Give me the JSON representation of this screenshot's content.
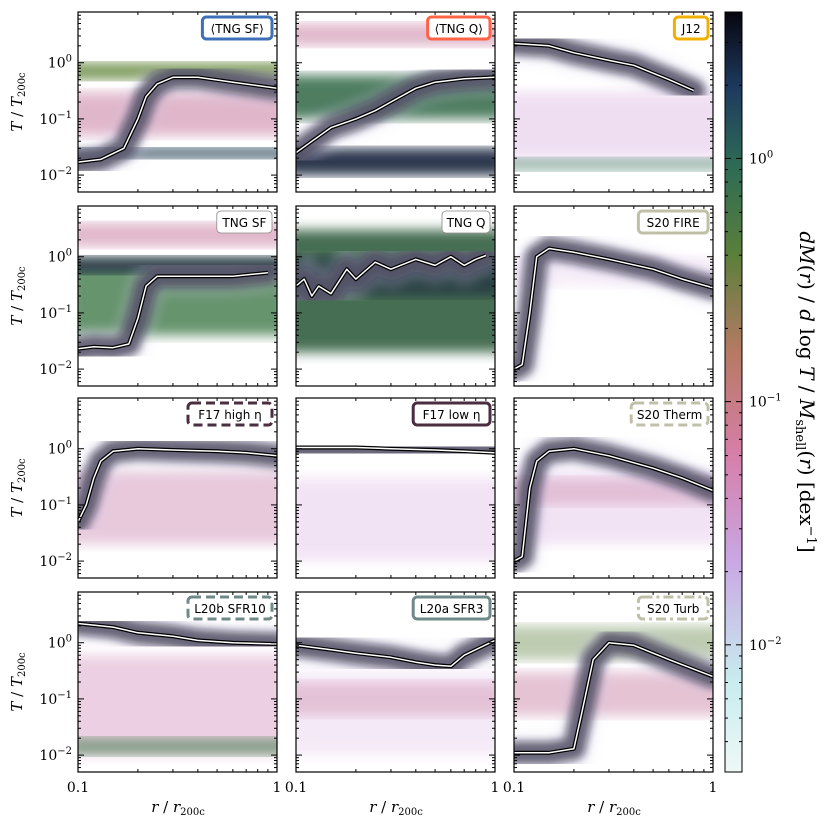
{
  "chart_data": {
    "type": "heatmap",
    "x_axis": {
      "scale": "log",
      "range": [
        0.1,
        1.0
      ],
      "tick_labels": [
        "0.1",
        "1"
      ],
      "label": "r / r_200c"
    },
    "y_axis": {
      "scale": "log",
      "range": [
        0.005,
        8.0
      ],
      "tick_labels": [
        "10^-2",
        "10^-1",
        "10^0"
      ],
      "label": "T / T_200c"
    },
    "colorbar": {
      "scale": "log",
      "range": [
        0.003,
        4.0
      ],
      "tick_labels": [
        "10^-2",
        "10^-1",
        "10^0"
      ],
      "label": "dM(r) / d log T / M_shell(r) [dex^-1]",
      "colormap": "cubehelix-like"
    },
    "panels": [
      {
        "id": "tngsf_stack",
        "label": "⟨TNG SF⟩",
        "label_color": "#3f6fb5",
        "label_style": "solid",
        "curve": {
          "r": [
            0.1,
            0.13,
            0.17,
            0.2,
            0.22,
            0.25,
            0.3,
            0.4,
            0.6,
            1.0
          ],
          "T": [
            0.017,
            0.019,
            0.03,
            0.1,
            0.25,
            0.42,
            0.55,
            0.55,
            0.45,
            0.35
          ]
        }
      },
      {
        "id": "tngq_stack",
        "label": "⟨TNG Q⟩",
        "label_color": "#ff6347",
        "label_style": "solid",
        "curve": {
          "r": [
            0.1,
            0.12,
            0.15,
            0.2,
            0.25,
            0.3,
            0.4,
            0.5,
            0.7,
            1.0
          ],
          "T": [
            0.025,
            0.04,
            0.07,
            0.1,
            0.14,
            0.2,
            0.35,
            0.45,
            0.52,
            0.55
          ]
        }
      },
      {
        "id": "j12",
        "label": "J12",
        "label_color": "#f0b000",
        "label_style": "solid",
        "curve": {
          "r": [
            0.1,
            0.15,
            0.2,
            0.3,
            0.4,
            0.5,
            0.6,
            0.8
          ],
          "T": [
            2.2,
            2.0,
            1.5,
            1.1,
            0.9,
            0.65,
            0.5,
            0.32
          ]
        }
      },
      {
        "id": "tng_sf",
        "label": "TNG SF",
        "label_color": "#ffffff",
        "label_style": "thin",
        "curve": {
          "r": [
            0.1,
            0.12,
            0.15,
            0.18,
            0.2,
            0.22,
            0.25,
            0.3,
            0.4,
            0.6,
            0.9
          ],
          "T": [
            0.023,
            0.025,
            0.024,
            0.028,
            0.08,
            0.3,
            0.45,
            0.45,
            0.45,
            0.45,
            0.52
          ]
        }
      },
      {
        "id": "tng_q",
        "label": "TNG Q",
        "label_color": "#ffffff",
        "label_style": "thin",
        "curve": {
          "r": [
            0.1,
            0.11,
            0.12,
            0.13,
            0.15,
            0.18,
            0.2,
            0.25,
            0.3,
            0.4,
            0.5,
            0.6,
            0.7,
            0.8,
            0.9
          ],
          "T": [
            0.3,
            0.4,
            0.2,
            0.3,
            0.22,
            0.6,
            0.4,
            0.8,
            0.6,
            0.9,
            0.7,
            1.0,
            0.7,
            0.9,
            1.05
          ]
        }
      },
      {
        "id": "s20_fire",
        "label": "S20 FIRE",
        "label_color": "#c0c0a8",
        "label_style": "solid",
        "curve": {
          "r": [
            0.1,
            0.11,
            0.12,
            0.13,
            0.15,
            0.2,
            0.3,
            0.5,
            0.7,
            1.0
          ],
          "T": [
            0.01,
            0.012,
            0.1,
            1.0,
            1.4,
            1.2,
            0.9,
            0.6,
            0.4,
            0.28
          ]
        }
      },
      {
        "id": "f17_high",
        "label": "F17 high η",
        "label_color": "#4a2d3f",
        "label_style": "dashed",
        "curve": {
          "r": [
            0.1,
            0.11,
            0.12,
            0.13,
            0.15,
            0.2,
            0.3,
            0.5,
            0.7,
            1.0
          ],
          "T": [
            0.05,
            0.1,
            0.3,
            0.6,
            0.9,
            1.0,
            0.95,
            0.9,
            0.85,
            0.75
          ]
        }
      },
      {
        "id": "f17_low",
        "label": "F17 low η",
        "label_color": "#4a2d3f",
        "label_style": "solid",
        "curve": {
          "r": [
            0.1,
            0.2,
            0.3,
            0.5,
            0.7,
            1.0
          ],
          "T": [
            1.05,
            1.05,
            1.0,
            0.95,
            0.9,
            0.85
          ]
        }
      },
      {
        "id": "s20_therm",
        "label": "S20 Therm",
        "label_color": "#c0c0a8",
        "label_style": "dashed",
        "curve": {
          "r": [
            0.1,
            0.11,
            0.12,
            0.13,
            0.15,
            0.2,
            0.3,
            0.5,
            0.7,
            1.0
          ],
          "T": [
            0.01,
            0.012,
            0.2,
            0.6,
            0.9,
            1.0,
            0.75,
            0.45,
            0.3,
            0.18
          ]
        }
      },
      {
        "id": "l20b_sfr10",
        "label": "L20b SFR10",
        "label_color": "#6f8888",
        "label_style": "dashed",
        "curve": {
          "r": [
            0.1,
            0.15,
            0.2,
            0.3,
            0.4,
            0.6,
            1.0
          ],
          "T": [
            2.2,
            1.9,
            1.5,
            1.3,
            1.1,
            1.0,
            0.95
          ]
        }
      },
      {
        "id": "l20a_sfr3",
        "label": "L20a SFR3",
        "label_color": "#6f8888",
        "label_style": "solid",
        "curve": {
          "r": [
            0.1,
            0.15,
            0.2,
            0.3,
            0.4,
            0.5,
            0.6,
            0.7,
            1.0
          ],
          "T": [
            0.9,
            0.75,
            0.65,
            0.55,
            0.45,
            0.4,
            0.38,
            0.6,
            1.1
          ]
        }
      },
      {
        "id": "s20_turb",
        "label": "S20 Turb",
        "label_color": "#c0c0a8",
        "label_style": "dashdot",
        "curve": {
          "r": [
            0.1,
            0.15,
            0.2,
            0.22,
            0.25,
            0.3,
            0.4,
            0.6,
            1.0
          ],
          "T": [
            0.011,
            0.011,
            0.013,
            0.06,
            0.5,
            1.0,
            0.9,
            0.5,
            0.25
          ]
        }
      }
    ]
  }
}
